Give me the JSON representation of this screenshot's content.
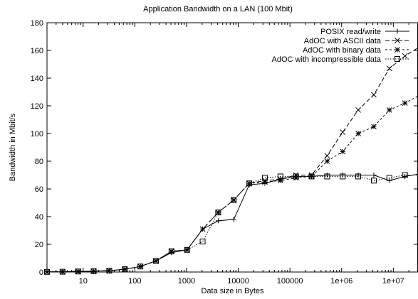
{
  "chart_data": {
    "type": "line",
    "title": "Application Bandwidth on a LAN (100 Mbit)",
    "xlabel": "Data size in Bytes",
    "ylabel": "Bandwidth in Mbit/s",
    "x_scale": "log",
    "xlim": [
      2,
      30000000
    ],
    "ylim": [
      0,
      180
    ],
    "x_ticks": [
      {
        "value": 10,
        "label": "10"
      },
      {
        "value": 100,
        "label": "100"
      },
      {
        "value": 1000,
        "label": "1000"
      },
      {
        "value": 10000,
        "label": "10000"
      },
      {
        "value": 100000,
        "label": "100000"
      },
      {
        "value": 1000000,
        "label": "1e+06"
      },
      {
        "value": 10000000,
        "label": "1e+07"
      }
    ],
    "y_ticks": [
      0,
      20,
      40,
      60,
      80,
      100,
      120,
      140,
      160,
      180
    ],
    "legend_position": "top-right",
    "grid": false,
    "series": [
      {
        "name": "POSIX read/write",
        "marker": "plus",
        "dash": "solid",
        "points": [
          [
            2,
            0.1
          ],
          [
            4,
            0.2
          ],
          [
            8,
            0.4
          ],
          [
            16,
            0.6
          ],
          [
            32,
            1
          ],
          [
            64,
            2
          ],
          [
            128,
            4
          ],
          [
            256,
            8
          ],
          [
            512,
            14
          ],
          [
            1024,
            16
          ],
          [
            2048,
            31
          ],
          [
            4096,
            37
          ],
          [
            8192,
            38
          ],
          [
            16384,
            63
          ],
          [
            32768,
            64
          ],
          [
            65536,
            67
          ],
          [
            131072,
            69
          ],
          [
            262144,
            69
          ],
          [
            524288,
            70
          ],
          [
            1048576,
            70
          ],
          [
            2097152,
            70
          ],
          [
            4194304,
            70
          ],
          [
            8388608,
            66
          ],
          [
            16777216,
            69
          ],
          [
            33554432,
            71
          ]
        ]
      },
      {
        "name": "AdOC with ASCII data",
        "marker": "x",
        "dash": "dashed",
        "points": [
          [
            2,
            0.1
          ],
          [
            4,
            0.2
          ],
          [
            8,
            0.4
          ],
          [
            16,
            0.6
          ],
          [
            32,
            1
          ],
          [
            64,
            2
          ],
          [
            128,
            4
          ],
          [
            256,
            8
          ],
          [
            512,
            15
          ],
          [
            1024,
            16
          ],
          [
            2048,
            31
          ],
          [
            4096,
            43
          ],
          [
            8192,
            52
          ],
          [
            16384,
            64
          ],
          [
            32768,
            66
          ],
          [
            65536,
            67
          ],
          [
            131072,
            70
          ],
          [
            262144,
            70
          ],
          [
            524288,
            84
          ],
          [
            1048576,
            101
          ],
          [
            2097152,
            117
          ],
          [
            4194304,
            128
          ],
          [
            8388608,
            147
          ],
          [
            16777216,
            156
          ],
          [
            33554432,
            163
          ]
        ]
      },
      {
        "name": "AdOC with binary data",
        "marker": "star",
        "dash": "dotted",
        "points": [
          [
            2,
            0.1
          ],
          [
            4,
            0.2
          ],
          [
            8,
            0.4
          ],
          [
            16,
            0.6
          ],
          [
            32,
            1
          ],
          [
            64,
            2
          ],
          [
            128,
            4
          ],
          [
            256,
            8
          ],
          [
            512,
            15
          ],
          [
            1024,
            16
          ],
          [
            2048,
            31
          ],
          [
            4096,
            43
          ],
          [
            8192,
            52
          ],
          [
            16384,
            64
          ],
          [
            32768,
            65
          ],
          [
            65536,
            66
          ],
          [
            131072,
            68
          ],
          [
            262144,
            69
          ],
          [
            524288,
            80
          ],
          [
            1048576,
            87
          ],
          [
            2097152,
            100
          ],
          [
            4194304,
            105
          ],
          [
            8388608,
            117
          ],
          [
            16777216,
            122
          ],
          [
            33554432,
            128
          ]
        ]
      },
      {
        "name": "AdOC with incompressible data",
        "marker": "square",
        "dash": "densedot",
        "points": [
          [
            2,
            0.1
          ],
          [
            4,
            0.2
          ],
          [
            8,
            0.4
          ],
          [
            16,
            0.6
          ],
          [
            32,
            1
          ],
          [
            64,
            2
          ],
          [
            128,
            4
          ],
          [
            256,
            8
          ],
          [
            512,
            15
          ],
          [
            1024,
            16
          ],
          [
            2048,
            22
          ],
          [
            4096,
            43
          ],
          [
            8192,
            52
          ],
          [
            16384,
            64
          ],
          [
            32768,
            68
          ],
          [
            65536,
            69
          ],
          [
            131072,
            69
          ],
          [
            262144,
            69
          ],
          [
            524288,
            69
          ],
          [
            1048576,
            69
          ],
          [
            2097152,
            69
          ],
          [
            4194304,
            66
          ],
          [
            8388608,
            68
          ],
          [
            16777216,
            70
          ],
          [
            33554432,
            70
          ]
        ]
      }
    ]
  }
}
